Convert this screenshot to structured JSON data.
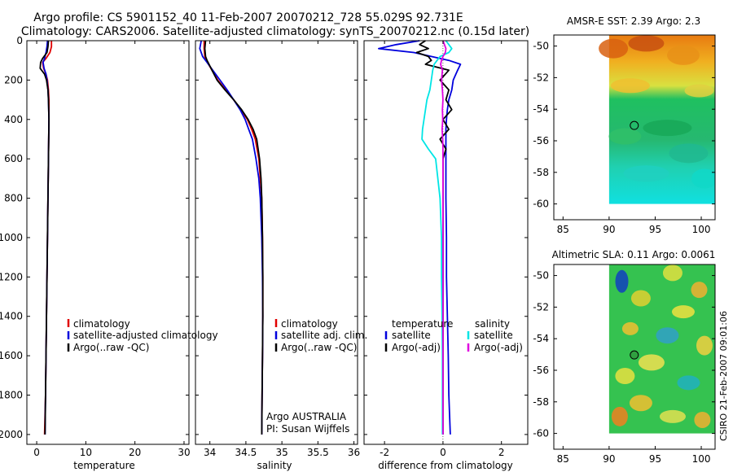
{
  "title": {
    "line1": "Argo profile: CS 5901152_40 11-Feb-2007 20070212_728 55.029S 92.731E",
    "line2": "Climatology: CARS2006. Satellite-adjusted climatology: synTS_20070212.nc (0.15d later)"
  },
  "side_credit": "CSIRO 21-Feb-2007 09:01:06",
  "colors": {
    "red": "#e00000",
    "blue": "#0000dd",
    "black": "#000000",
    "cyan": "#00e5e5",
    "magenta": "#e000e0"
  },
  "chart_data": [
    {
      "id": "temperature",
      "type": "line",
      "xlabel": "temperature",
      "xlim": [
        -2,
        31
      ],
      "xticks": [
        "0",
        "10",
        "20",
        "30"
      ],
      "xtick_values": [
        0,
        10,
        20,
        30
      ],
      "ylim": [
        2050,
        0
      ],
      "yticks": [
        "0",
        "200",
        "400",
        "600",
        "800",
        "1000",
        "1200",
        "1400",
        "1600",
        "1800",
        "2000"
      ],
      "ytick_values": [
        0,
        200,
        400,
        600,
        800,
        1000,
        1200,
        1400,
        1600,
        1800,
        2000
      ],
      "depth": [
        0,
        30,
        60,
        90,
        110,
        140,
        170,
        200,
        250,
        300,
        400,
        600,
        800,
        1000,
        1200,
        1400,
        1600,
        1800,
        2000
      ],
      "series": [
        {
          "name": "climatology",
          "color": "#e00000",
          "values": [
            3.0,
            3.0,
            2.7,
            1.9,
            1.2,
            1.4,
            1.9,
            2.2,
            2.4,
            2.5,
            2.5,
            2.4,
            2.3,
            2.2,
            2.1,
            2.0,
            1.9,
            1.8,
            1.6
          ]
        },
        {
          "name": "satellite-adjusted climatology",
          "color": "#0000dd",
          "values": [
            2.2,
            2.1,
            1.9,
            1.6,
            1.3,
            1.5,
            1.9,
            2.1,
            2.3,
            2.4,
            2.5,
            2.4,
            2.3,
            2.2,
            2.1,
            2.0,
            1.9,
            1.8,
            1.7
          ]
        },
        {
          "name": "Argo(..raw -QC)",
          "color": "#000000",
          "values": [
            2.4,
            2.3,
            2.1,
            1.2,
            0.8,
            0.7,
            1.6,
            2.0,
            2.3,
            2.4,
            2.5,
            2.4,
            2.3,
            2.2,
            2.1,
            2.0,
            1.9,
            1.8,
            1.7
          ]
        }
      ],
      "legend": {
        "placement": "center-right",
        "items": [
          "climatology",
          "satellite-adjusted climatology",
          "Argo(..raw -QC)"
        ]
      }
    },
    {
      "id": "salinity",
      "type": "line",
      "xlabel": "salinity",
      "xlim": [
        33.8,
        36.05
      ],
      "xticks": [
        "34",
        "34.5",
        "35",
        "35.5",
        "36"
      ],
      "xtick_values": [
        34,
        34.5,
        35,
        35.5,
        36
      ],
      "ylim": [
        2050,
        0
      ],
      "depth": [
        0,
        40,
        80,
        100,
        150,
        200,
        250,
        300,
        350,
        400,
        450,
        500,
        600,
        700,
        800,
        1000,
        1200,
        1400,
        1600,
        1800,
        2000
      ],
      "series": [
        {
          "name": "climatology",
          "color": "#e00000",
          "values": [
            33.92,
            33.92,
            33.93,
            33.95,
            34.03,
            34.11,
            34.22,
            34.33,
            34.43,
            34.52,
            34.58,
            34.63,
            34.68,
            34.7,
            34.72,
            34.73,
            34.735,
            34.735,
            34.73,
            34.725,
            34.72
          ]
        },
        {
          "name": "satellite adj. clim.",
          "color": "#0000dd",
          "values": [
            33.88,
            33.86,
            33.9,
            33.94,
            34.04,
            34.14,
            34.24,
            34.33,
            34.42,
            34.49,
            34.54,
            34.59,
            34.64,
            34.68,
            34.7,
            34.72,
            34.73,
            34.735,
            34.73,
            34.725,
            34.72
          ]
        },
        {
          "name": "Argo(..raw -QC)",
          "color": "#000000",
          "values": [
            33.94,
            33.93,
            33.94,
            33.96,
            34.03,
            34.1,
            34.21,
            34.33,
            34.44,
            34.53,
            34.6,
            34.65,
            34.69,
            34.71,
            34.72,
            34.73,
            34.735,
            34.735,
            34.73,
            34.725,
            34.72
          ]
        }
      ],
      "legend": {
        "placement": "center-right",
        "items": [
          "climatology",
          "satellite adj. clim.",
          "Argo(..raw -QC)"
        ]
      },
      "annotation": [
        "Argo AUSTRALIA",
        "PI: Susan Wijffels"
      ]
    },
    {
      "id": "difference",
      "type": "line",
      "xlabel": "difference from climatology",
      "xlim": [
        -2.7,
        2.9
      ],
      "xticks": [
        "-2",
        "0",
        "2"
      ],
      "xtick_values": [
        -2,
        0,
        2
      ],
      "ylim": [
        2050,
        0
      ],
      "depth": [
        0,
        20,
        40,
        60,
        80,
        100,
        120,
        150,
        200,
        250,
        300,
        350,
        400,
        450,
        500,
        550,
        600,
        800,
        1000,
        1200,
        1400,
        1600,
        1800,
        2000
      ],
      "series": [
        {
          "name": "temperature satellite",
          "color": "#0000dd",
          "values": [
            -0.8,
            -1.6,
            -2.2,
            -1.0,
            -0.4,
            0.2,
            0.6,
            0.5,
            0.35,
            0.3,
            0.2,
            0.15,
            0.12,
            0.1,
            0.1,
            0.1,
            0.1,
            0.1,
            0.12,
            0.12,
            0.15,
            0.18,
            0.2,
            0.25
          ]
        },
        {
          "name": "temperature Argo(-adj)",
          "color": "#000000",
          "values": [
            -0.6,
            -0.8,
            -0.5,
            -0.9,
            -0.5,
            -0.4,
            -0.6,
            0.2,
            -0.1,
            0.2,
            0.1,
            0.3,
            0.0,
            0.2,
            -0.1,
            0.1,
            0.0,
            0.0,
            0.0,
            0.0,
            0.0,
            0.0,
            0.0,
            0.0
          ]
        },
        {
          "name": "salinity satellite",
          "color": "#00e5e5",
          "values": [
            0.1,
            0.2,
            0.3,
            0.2,
            -0.1,
            -0.2,
            -0.3,
            -0.35,
            -0.4,
            -0.45,
            -0.55,
            -0.6,
            -0.65,
            -0.7,
            -0.72,
            -0.5,
            -0.25,
            -0.1,
            -0.05,
            -0.05,
            -0.03,
            -0.02,
            -0.02,
            -0.02
          ]
        },
        {
          "name": "salinity Argo(-adj)",
          "color": "#e000e0",
          "values": [
            0.0,
            0.05,
            0.1,
            0.08,
            0.0,
            -0.05,
            -0.08,
            -0.02,
            -0.05,
            -0.02,
            0.0,
            -0.02,
            -0.01,
            -0.03,
            -0.01,
            0.0,
            0.0,
            0.0,
            0.0,
            0.0,
            0.0,
            0.0,
            0.0,
            0.0
          ]
        }
      ],
      "legend": {
        "placement": "center-right",
        "temperature_header": "temperature",
        "salinity_header": "salinity",
        "items": [
          {
            "label": "satellite",
            "color": "#0000dd"
          },
          {
            "label": "Argo(-adj)",
            "color": "#000000"
          },
          {
            "label": "satellite",
            "color": "#00e5e5"
          },
          {
            "label": "Argo(-adj)",
            "color": "#e000e0"
          }
        ]
      }
    },
    {
      "id": "sst_map",
      "type": "heatmap",
      "title": "AMSR-E SST: 2.39  Argo: 2.3",
      "xlim": [
        84,
        101.5
      ],
      "xticks": [
        "85",
        "90",
        "95",
        "100"
      ],
      "xtick_values": [
        85,
        90,
        95,
        100
      ],
      "ylim": [
        -61,
        -49.3
      ],
      "yticks": [
        "-50",
        "-52",
        "-54",
        "-56",
        "-58",
        "-60"
      ],
      "ytick_values": [
        -50,
        -52,
        -54,
        -56,
        -58,
        -60
      ],
      "data_extent": {
        "lon": [
          90,
          101.5
        ],
        "lat": [
          -60,
          -49.3
        ]
      },
      "marker": {
        "lon": 92.731,
        "lat": -55.029
      }
    },
    {
      "id": "sla_map",
      "type": "heatmap",
      "title": "Altimetric SLA: 0.11  Argo: 0.0061",
      "xlim": [
        84,
        101.5
      ],
      "xticks": [
        "85",
        "90",
        "95",
        "100"
      ],
      "xtick_values": [
        85,
        90,
        95,
        100
      ],
      "ylim": [
        -61,
        -49.3
      ],
      "yticks": [
        "-50",
        "-52",
        "-54",
        "-56",
        "-58",
        "-60"
      ],
      "ytick_values": [
        -50,
        -52,
        -54,
        -56,
        -58,
        -60
      ],
      "data_extent": {
        "lon": [
          90,
          101.5
        ],
        "lat": [
          -60,
          -49.3
        ]
      },
      "marker": {
        "lon": 92.731,
        "lat": -55.029
      }
    }
  ]
}
